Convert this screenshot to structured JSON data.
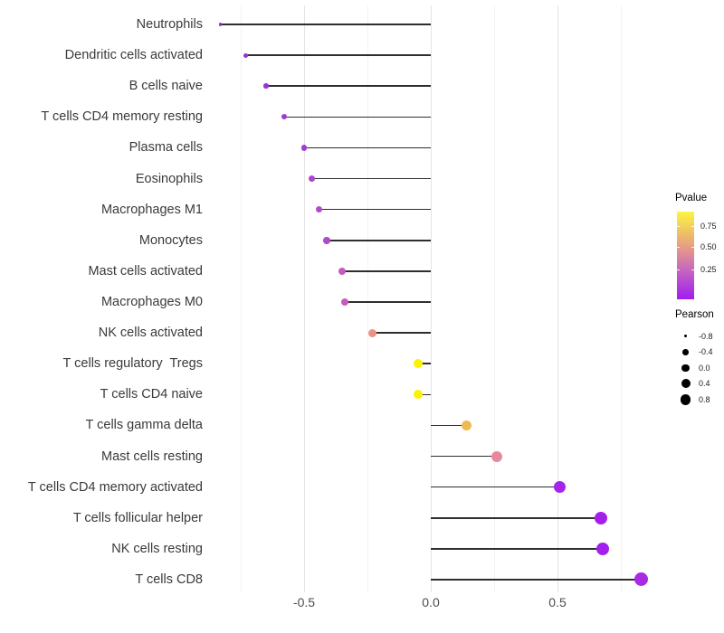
{
  "chart_data": {
    "type": "lollipop",
    "title": "",
    "xlabel": "",
    "ylabel": "",
    "x_ticks": [
      "-0.5",
      "0.0",
      "0.5"
    ],
    "x_tick_values": [
      -0.5,
      0.0,
      0.5
    ],
    "grid_minor_values": [
      -0.75,
      -0.25,
      0.25,
      0.75
    ],
    "xlim": [
      -0.91,
      0.91
    ],
    "grid": "vertical-only",
    "stem_color": "#2e2e2e",
    "axis_text_color": "#4d4d4d",
    "series": [
      {
        "label": "Neutrophils",
        "pearson": -0.83,
        "color": "#8833d9",
        "size": 3.5
      },
      {
        "label": "Dendritic cells activated",
        "pearson": -0.73,
        "color": "#9232db",
        "size": 5
      },
      {
        "label": "B cells naive",
        "pearson": -0.65,
        "color": "#9a35d5",
        "size": 5.5
      },
      {
        "label": "T cells CD4 memory resting",
        "pearson": -0.58,
        "color": "#a03ad4",
        "size": 6
      },
      {
        "label": "Plasma cells",
        "pearson": -0.5,
        "color": "#a23dd3",
        "size": 6.5
      },
      {
        "label": "Eosinophils",
        "pearson": -0.47,
        "color": "#aa45ce",
        "size": 7
      },
      {
        "label": "Macrophages M1",
        "pearson": -0.44,
        "color": "#b04cc9",
        "size": 7
      },
      {
        "label": "Monocytes",
        "pearson": -0.41,
        "color": "#ae4bcb",
        "size": 7.5
      },
      {
        "label": "Mast cells activated",
        "pearson": -0.35,
        "color": "#c45bbd",
        "size": 8
      },
      {
        "label": "Macrophages M0",
        "pearson": -0.34,
        "color": "#c55cbb",
        "size": 8
      },
      {
        "label": "NK cells activated",
        "pearson": -0.23,
        "color": "#ec9185",
        "size": 9
      },
      {
        "label": "T cells regulatory  Tregs",
        "pearson": -0.05,
        "color": "#fbf303",
        "size": 10
      },
      {
        "label": "T cells CD4 naive",
        "pearson": -0.05,
        "color": "#fbf303",
        "size": 10
      },
      {
        "label": "T cells gamma delta",
        "pearson": 0.14,
        "color": "#efba52",
        "size": 11
      },
      {
        "label": "Mast cells resting",
        "pearson": 0.26,
        "color": "#e7899d",
        "size": 12
      },
      {
        "label": "T cells CD4 memory activated",
        "pearson": 0.51,
        "color": "#a624ea",
        "size": 13
      },
      {
        "label": "T cells follicular helper",
        "pearson": 0.67,
        "color": "#a51fec",
        "size": 14
      },
      {
        "label": "NK cells resting",
        "pearson": 0.68,
        "color": "#a51fec",
        "size": 14
      },
      {
        "label": "T cells CD8",
        "pearson": 0.83,
        "color": "#aa2ae4",
        "size": 15
      }
    ],
    "legend_pvalue": {
      "title": "Pvalue",
      "tick_labels": [
        "0.75",
        "0.50",
        "0.25"
      ],
      "tick_fractions_from_top": [
        0.16,
        0.4,
        0.66
      ],
      "gradient_stops_bottom_to_top": [
        "#a11cf0",
        "#c25fc5",
        "#e2938f",
        "#f0c560",
        "#fbf542"
      ]
    },
    "legend_pearson": {
      "title": "Pearson",
      "entries": [
        {
          "label": "-0.8",
          "size": 3
        },
        {
          "label": "-0.4",
          "size": 6.5
        },
        {
          "label": "0.0",
          "size": 8.5
        },
        {
          "label": "0.4",
          "size": 10
        },
        {
          "label": "0.8",
          "size": 11.5
        }
      ],
      "dot_color": "#000000"
    }
  }
}
